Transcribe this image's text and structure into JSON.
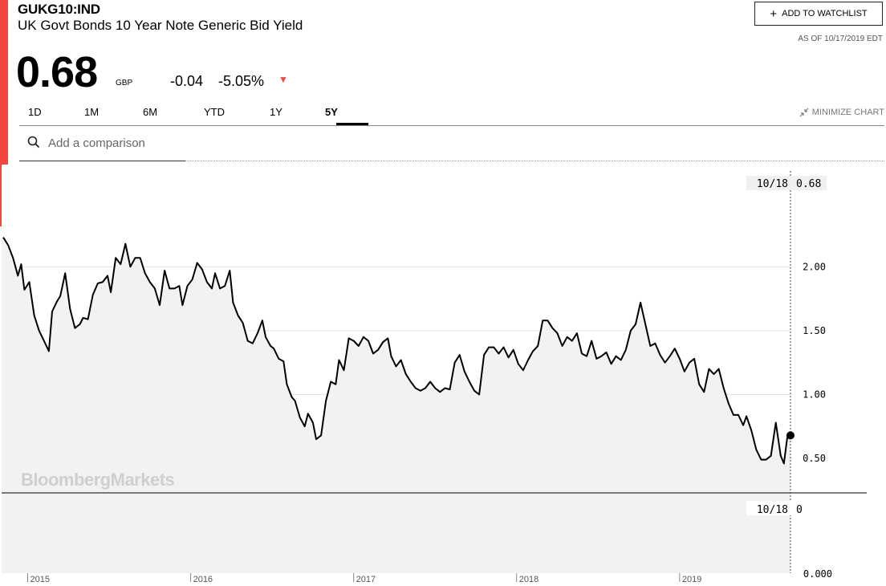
{
  "header": {
    "ticker": "GUKG10:IND",
    "name": "UK Govt Bonds 10 Year Note Generic Bid Yield",
    "price": "0.68",
    "currency": "GBP",
    "change": "-0.04",
    "change_pct": "-5.05%",
    "down_arrow": "▼",
    "accent_color": "#f4463c"
  },
  "actions": {
    "watchlist_plus": "+",
    "watchlist_label": "ADD TO WATCHLIST",
    "as_of": "AS OF 10/17/2019 EDT",
    "minimize_label": "MINIMIZE CHART",
    "minimize_icon": "minimize-arrows-icon"
  },
  "tabs": [
    {
      "label": "1D",
      "active": false
    },
    {
      "label": "1M",
      "active": false
    },
    {
      "label": "6M",
      "active": false
    },
    {
      "label": "YTD",
      "active": false
    },
    {
      "label": "1Y",
      "active": false
    },
    {
      "label": "5Y",
      "active": true
    }
  ],
  "search": {
    "placeholder": "Add a comparison",
    "icon": "search-icon"
  },
  "watermark": "BloombergMarkets",
  "chart_data": {
    "type": "line",
    "series": [
      {
        "values": [
          [
            2014.85,
            2.23
          ],
          [
            2014.88,
            2.17
          ],
          [
            2014.91,
            2.07
          ],
          [
            2014.94,
            1.93
          ],
          [
            2014.96,
            2.02
          ],
          [
            2014.98,
            1.82
          ],
          [
            2015.01,
            1.88
          ],
          [
            2015.04,
            1.62
          ],
          [
            2015.07,
            1.5
          ],
          [
            2015.1,
            1.42
          ],
          [
            2015.13,
            1.34
          ],
          [
            2015.15,
            1.65
          ],
          [
            2015.18,
            1.73
          ],
          [
            2015.2,
            1.77
          ],
          [
            2015.23,
            1.95
          ],
          [
            2015.26,
            1.67
          ],
          [
            2015.29,
            1.52
          ],
          [
            2015.32,
            1.55
          ],
          [
            2015.34,
            1.6
          ],
          [
            2015.37,
            1.59
          ],
          [
            2015.4,
            1.78
          ],
          [
            2015.43,
            1.87
          ],
          [
            2015.46,
            1.88
          ],
          [
            2015.49,
            1.93
          ],
          [
            2015.51,
            1.8
          ],
          [
            2015.54,
            2.07
          ],
          [
            2015.57,
            2.02
          ],
          [
            2015.6,
            2.18
          ],
          [
            2015.63,
            2.0
          ],
          [
            2015.66,
            2.07
          ],
          [
            2015.69,
            2.07
          ],
          [
            2015.72,
            1.95
          ],
          [
            2015.75,
            1.88
          ],
          [
            2015.78,
            1.83
          ],
          [
            2015.81,
            1.7
          ],
          [
            2015.84,
            1.97
          ],
          [
            2015.87,
            1.83
          ],
          [
            2015.9,
            1.83
          ],
          [
            2015.93,
            1.85
          ],
          [
            2015.95,
            1.7
          ],
          [
            2015.98,
            1.85
          ],
          [
            2016.01,
            1.9
          ],
          [
            2016.04,
            2.03
          ],
          [
            2016.07,
            1.98
          ],
          [
            2016.1,
            1.88
          ],
          [
            2016.13,
            1.83
          ],
          [
            2016.15,
            1.95
          ],
          [
            2016.18,
            1.83
          ],
          [
            2016.21,
            1.85
          ],
          [
            2016.24,
            1.97
          ],
          [
            2016.26,
            1.72
          ],
          [
            2016.29,
            1.62
          ],
          [
            2016.32,
            1.56
          ],
          [
            2016.35,
            1.42
          ],
          [
            2016.38,
            1.4
          ],
          [
            2016.41,
            1.48
          ],
          [
            2016.44,
            1.58
          ],
          [
            2016.46,
            1.45
          ],
          [
            2016.49,
            1.38
          ],
          [
            2016.51,
            1.36
          ],
          [
            2016.54,
            1.28
          ],
          [
            2016.57,
            1.26
          ],
          [
            2016.59,
            1.08
          ],
          [
            2016.62,
            0.98
          ],
          [
            2016.64,
            0.95
          ],
          [
            2016.67,
            0.82
          ],
          [
            2016.7,
            0.75
          ],
          [
            2016.72,
            0.85
          ],
          [
            2016.75,
            0.78
          ],
          [
            2016.77,
            0.65
          ],
          [
            2016.8,
            0.68
          ],
          [
            2016.83,
            0.95
          ],
          [
            2016.86,
            1.1
          ],
          [
            2016.89,
            1.08
          ],
          [
            2016.91,
            1.27
          ],
          [
            2016.94,
            1.19
          ],
          [
            2016.97,
            1.44
          ],
          [
            2017.0,
            1.42
          ],
          [
            2017.03,
            1.38
          ],
          [
            2017.06,
            1.45
          ],
          [
            2017.09,
            1.42
          ],
          [
            2017.12,
            1.32
          ],
          [
            2017.15,
            1.35
          ],
          [
            2017.18,
            1.41
          ],
          [
            2017.21,
            1.44
          ],
          [
            2017.23,
            1.3
          ],
          [
            2017.26,
            1.22
          ],
          [
            2017.29,
            1.27
          ],
          [
            2017.32,
            1.16
          ],
          [
            2017.35,
            1.1
          ],
          [
            2017.38,
            1.05
          ],
          [
            2017.41,
            1.03
          ],
          [
            2017.44,
            1.05
          ],
          [
            2017.47,
            1.1
          ],
          [
            2017.5,
            1.05
          ],
          [
            2017.53,
            1.02
          ],
          [
            2017.56,
            1.05
          ],
          [
            2017.59,
            1.04
          ],
          [
            2017.62,
            1.25
          ],
          [
            2017.65,
            1.31
          ],
          [
            2017.68,
            1.18
          ],
          [
            2017.71,
            1.1
          ],
          [
            2017.74,
            1.03
          ],
          [
            2017.77,
            1.0
          ],
          [
            2017.8,
            1.31
          ],
          [
            2017.83,
            1.37
          ],
          [
            2017.86,
            1.37
          ],
          [
            2017.89,
            1.32
          ],
          [
            2017.92,
            1.37
          ],
          [
            2017.95,
            1.29
          ],
          [
            2017.98,
            1.35
          ],
          [
            2018.01,
            1.24
          ],
          [
            2018.04,
            1.19
          ],
          [
            2018.07,
            1.27
          ],
          [
            2018.1,
            1.34
          ],
          [
            2018.13,
            1.38
          ],
          [
            2018.16,
            1.58
          ],
          [
            2018.19,
            1.58
          ],
          [
            2018.22,
            1.52
          ],
          [
            2018.25,
            1.48
          ],
          [
            2018.28,
            1.38
          ],
          [
            2018.31,
            1.45
          ],
          [
            2018.34,
            1.42
          ],
          [
            2018.37,
            1.48
          ],
          [
            2018.4,
            1.32
          ],
          [
            2018.43,
            1.3
          ],
          [
            2018.46,
            1.42
          ],
          [
            2018.49,
            1.28
          ],
          [
            2018.52,
            1.3
          ],
          [
            2018.55,
            1.33
          ],
          [
            2018.58,
            1.24
          ],
          [
            2018.61,
            1.3
          ],
          [
            2018.64,
            1.27
          ],
          [
            2018.67,
            1.35
          ],
          [
            2018.7,
            1.5
          ],
          [
            2018.73,
            1.55
          ],
          [
            2018.76,
            1.72
          ],
          [
            2018.79,
            1.55
          ],
          [
            2018.82,
            1.38
          ],
          [
            2018.85,
            1.4
          ],
          [
            2018.88,
            1.31
          ],
          [
            2018.91,
            1.25
          ],
          [
            2018.94,
            1.3
          ],
          [
            2018.97,
            1.36
          ],
          [
            2019.0,
            1.28
          ],
          [
            2019.03,
            1.18
          ],
          [
            2019.06,
            1.25
          ],
          [
            2019.09,
            1.28
          ],
          [
            2019.12,
            1.08
          ],
          [
            2019.15,
            1.02
          ],
          [
            2019.18,
            1.2
          ],
          [
            2019.21,
            1.16
          ],
          [
            2019.24,
            1.2
          ],
          [
            2019.27,
            1.05
          ],
          [
            2019.3,
            0.93
          ],
          [
            2019.33,
            0.84
          ],
          [
            2019.36,
            0.84
          ],
          [
            2019.39,
            0.76
          ],
          [
            2019.41,
            0.83
          ],
          [
            2019.44,
            0.72
          ],
          [
            2019.47,
            0.57
          ],
          [
            2019.5,
            0.49
          ],
          [
            2019.53,
            0.49
          ],
          [
            2019.56,
            0.52
          ],
          [
            2019.59,
            0.78
          ],
          [
            2019.62,
            0.52
          ],
          [
            2019.64,
            0.46
          ],
          [
            2019.66,
            0.66
          ],
          [
            2019.68,
            0.68
          ]
        ]
      }
    ],
    "x_ticks": [
      {
        "value": 2015,
        "label": "2015"
      },
      {
        "value": 2016,
        "label": "2016"
      },
      {
        "value": 2017,
        "label": "2017"
      },
      {
        "value": 2018,
        "label": "2018"
      },
      {
        "value": 2019,
        "label": "2019"
      }
    ],
    "y_ticks": [
      {
        "value": 2.0,
        "label": "2.00"
      },
      {
        "value": 1.5,
        "label": "1.50"
      },
      {
        "value": 1.0,
        "label": "1.00"
      },
      {
        "value": 0.5,
        "label": "0.50"
      }
    ],
    "xlim": [
      2014.84,
      2019.695
    ],
    "ylim": [
      0.23,
      2.8
    ],
    "volume_pane": {
      "y_tick_label": "0.000"
    },
    "crosshair": {
      "date": "10/18",
      "value": "0.68",
      "volume_date": "10/18",
      "volume_value": "0"
    },
    "grid": true,
    "line_color": "#000000",
    "fill_color": "#f2f2f2"
  }
}
